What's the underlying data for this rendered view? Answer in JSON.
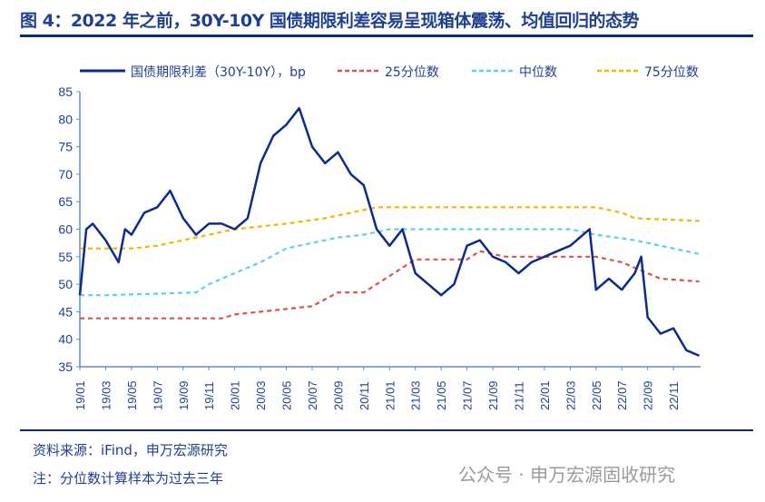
{
  "title": "图 4：2022 年之前，30Y-10Y 国债期限利差容易呈现箱体震荡、均值回归的态势",
  "source": "资料来源：iFind，申万宏源研究",
  "note": "注：分位数计算样本为过去三年",
  "watermark": "公众号 · 申万宏源固收研究",
  "colors": {
    "spread": "#0d2a8c",
    "p25": "#d9534f",
    "median": "#5bd0f0",
    "p75": "#f2b800",
    "title": "#1f3f8f"
  },
  "chart_data": {
    "type": "line",
    "title": "",
    "ylim": [
      35,
      85
    ],
    "yticks": [
      35,
      40,
      45,
      50,
      55,
      60,
      65,
      70,
      75,
      80,
      85
    ],
    "xticks": [
      "19/01",
      "19/03",
      "19/05",
      "19/07",
      "19/09",
      "19/11",
      "20/01",
      "20/03",
      "20/05",
      "20/07",
      "20/09",
      "20/11",
      "21/01",
      "21/03",
      "21/05",
      "21/07",
      "21/09",
      "21/11",
      "22/01",
      "22/03",
      "22/05",
      "22/07",
      "22/09",
      "22/11"
    ],
    "legend": "top",
    "series": [
      {
        "name": "国债期限利差（30Y-10Y），bp",
        "style": "solid",
        "x": [
          "2019-01",
          "2019-01.5",
          "2019-02",
          "2019-03",
          "2019-04",
          "2019-04.5",
          "2019-05",
          "2019-06",
          "2019-07",
          "2019-08",
          "2019-09",
          "2019-10",
          "2019-11",
          "2019-12",
          "2020-01",
          "2020-02",
          "2020-03",
          "2020-04",
          "2020-05",
          "2020-06",
          "2020-07",
          "2020-08",
          "2020-09",
          "2020-10",
          "2020-11",
          "2020-12",
          "2021-01",
          "2021-02",
          "2021-03",
          "2021-04",
          "2021-05",
          "2021-06",
          "2021-07",
          "2021-08",
          "2021-09",
          "2021-10",
          "2021-11",
          "2021-12",
          "2022-01",
          "2022-02",
          "2022-03",
          "2022-04",
          "2022-04.5",
          "2022-05",
          "2022-06",
          "2022-07",
          "2022-08",
          "2022-08.5",
          "2022-09",
          "2022-10",
          "2022-11",
          "2022-12",
          "2023-01"
        ],
        "values": [
          48,
          60,
          61,
          58,
          54,
          60,
          59,
          63,
          64,
          67,
          62,
          59,
          61,
          61,
          60,
          62,
          72,
          77,
          79,
          82,
          75,
          72,
          74,
          70,
          68,
          60,
          57,
          60,
          52,
          50,
          48,
          50,
          57,
          58,
          55,
          54,
          52,
          54,
          55,
          56,
          57,
          59,
          60,
          49,
          51,
          49,
          52,
          55,
          44,
          41,
          42,
          38,
          37
        ]
      },
      {
        "name": "25分位数",
        "style": "dash",
        "x": [
          "2019-01",
          "2019-12",
          "2020-01",
          "2020-03",
          "2020-07",
          "2020-09",
          "2020-11",
          "2020-12",
          "2021-03",
          "2021-07",
          "2021-08",
          "2021-10",
          "2022-05",
          "2022-07",
          "2022-10",
          "2023-01"
        ],
        "values": [
          43.8,
          43.8,
          44.5,
          45,
          46,
          48.5,
          48.5,
          50,
          54.5,
          54.5,
          56,
          55,
          55,
          54,
          51,
          50.5
        ]
      },
      {
        "name": "中位数",
        "style": "dash",
        "x": [
          "2019-01",
          "2019-03",
          "2019-10",
          "2019-11",
          "2020-01",
          "2020-03",
          "2020-05",
          "2020-07",
          "2020-09",
          "2020-11",
          "2021-01",
          "2022-03",
          "2022-05",
          "2022-08",
          "2022-10",
          "2023-01"
        ],
        "values": [
          48,
          48,
          48.5,
          50,
          52,
          54,
          56.5,
          57.5,
          58.5,
          59,
          60,
          60,
          59,
          58,
          57,
          55.5
        ]
      },
      {
        "name": "75分位数",
        "style": "dash",
        "x": [
          "2019-01",
          "2019-05",
          "2019-07",
          "2019-09",
          "2019-11",
          "2020-01",
          "2020-05",
          "2020-08",
          "2020-10",
          "2020-12",
          "2022-05",
          "2022-07",
          "2022-08",
          "2023-01"
        ],
        "values": [
          56.5,
          56.5,
          57,
          58,
          59,
          60,
          61,
          62,
          63,
          64,
          64,
          63,
          62,
          61.5
        ]
      }
    ]
  }
}
